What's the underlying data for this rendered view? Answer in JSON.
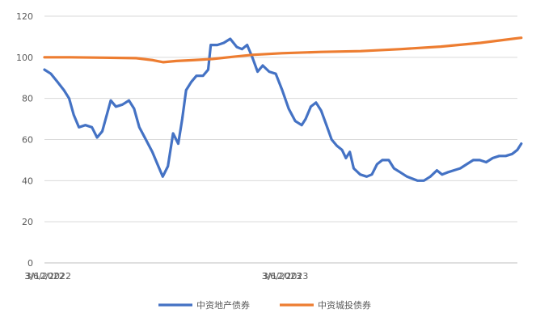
{
  "chart_data": {
    "type": "line",
    "title": "",
    "xlabel": "",
    "ylabel": "",
    "ylim": [
      0,
      120
    ],
    "yticks": [
      0,
      20,
      40,
      60,
      80,
      100,
      120
    ],
    "xlim": [
      "2022-03-06",
      "2024-03-03"
    ],
    "xticks": [
      "3/6/2022",
      "3/12/2022",
      "3/6/2023",
      "3/12/2023"
    ],
    "grid": true,
    "legend": "bottom",
    "series": [
      {
        "name": "中资地产债券",
        "color": "#4472C4",
        "points": [
          [
            "2022-03-06",
            94
          ],
          [
            "2022-03-16",
            92
          ],
          [
            "2022-03-26",
            88
          ],
          [
            "2022-04-05",
            84
          ],
          [
            "2022-04-13",
            80
          ],
          [
            "2022-04-20",
            72
          ],
          [
            "2022-04-28",
            66
          ],
          [
            "2022-05-08",
            67
          ],
          [
            "2022-05-18",
            66
          ],
          [
            "2022-05-26",
            61
          ],
          [
            "2022-06-03",
            64
          ],
          [
            "2022-06-10",
            72
          ],
          [
            "2022-06-16",
            79
          ],
          [
            "2022-06-24",
            76
          ],
          [
            "2022-07-04",
            77
          ],
          [
            "2022-07-14",
            79
          ],
          [
            "2022-07-22",
            75
          ],
          [
            "2022-07-30",
            66
          ],
          [
            "2022-08-09",
            60
          ],
          [
            "2022-08-19",
            54
          ],
          [
            "2022-08-27",
            48
          ],
          [
            "2022-09-04",
            42
          ],
          [
            "2022-09-12",
            47
          ],
          [
            "2022-09-20",
            63
          ],
          [
            "2022-09-28",
            58
          ],
          [
            "2022-10-04",
            70
          ],
          [
            "2022-10-10",
            84
          ],
          [
            "2022-10-18",
            88
          ],
          [
            "2022-10-26",
            91
          ],
          [
            "2022-11-05",
            91
          ],
          [
            "2022-11-13",
            94
          ],
          [
            "2022-11-17",
            106
          ],
          [
            "2022-11-27",
            106
          ],
          [
            "2022-12-07",
            107
          ],
          [
            "2022-12-17",
            109
          ],
          [
            "2022-12-27",
            105
          ],
          [
            "2023-01-04",
            104
          ],
          [
            "2023-01-12",
            106
          ],
          [
            "2023-01-20",
            100
          ],
          [
            "2023-01-28",
            93
          ],
          [
            "2023-02-05",
            96
          ],
          [
            "2023-02-15",
            93
          ],
          [
            "2023-02-25",
            92
          ],
          [
            "2023-03-07",
            84
          ],
          [
            "2023-03-17",
            75
          ],
          [
            "2023-03-27",
            69
          ],
          [
            "2023-04-06",
            67
          ],
          [
            "2023-04-12",
            70
          ],
          [
            "2023-04-20",
            76
          ],
          [
            "2023-04-28",
            78
          ],
          [
            "2023-05-06",
            74
          ],
          [
            "2023-05-14",
            67
          ],
          [
            "2023-05-22",
            60
          ],
          [
            "2023-05-30",
            57
          ],
          [
            "2023-06-07",
            55
          ],
          [
            "2023-06-13",
            51
          ],
          [
            "2023-06-19",
            54
          ],
          [
            "2023-06-25",
            46
          ],
          [
            "2023-07-05",
            43
          ],
          [
            "2023-07-15",
            42
          ],
          [
            "2023-07-23",
            43
          ],
          [
            "2023-07-31",
            48
          ],
          [
            "2023-08-08",
            50
          ],
          [
            "2023-08-18",
            50
          ],
          [
            "2023-08-26",
            46
          ],
          [
            "2023-09-05",
            44
          ],
          [
            "2023-09-15",
            42
          ],
          [
            "2023-09-23",
            41
          ],
          [
            "2023-10-01",
            40
          ],
          [
            "2023-10-11",
            40
          ],
          [
            "2023-10-21",
            42
          ],
          [
            "2023-10-31",
            45
          ],
          [
            "2023-11-08",
            43
          ],
          [
            "2023-11-16",
            44
          ],
          [
            "2023-11-26",
            45
          ],
          [
            "2023-12-06",
            46
          ],
          [
            "2023-12-16",
            48
          ],
          [
            "2023-12-26",
            50
          ],
          [
            "2024-01-05",
            50
          ],
          [
            "2024-01-15",
            49
          ],
          [
            "2024-01-25",
            51
          ],
          [
            "2024-02-04",
            52
          ],
          [
            "2024-02-14",
            52
          ],
          [
            "2024-02-24",
            53
          ],
          [
            "2024-03-03",
            55
          ],
          [
            "2024-03-09",
            58
          ]
        ]
      },
      {
        "name": "中资城投债券",
        "color": "#ED7D31",
        "points": [
          [
            "2022-03-06",
            100
          ],
          [
            "2022-04-15",
            100
          ],
          [
            "2022-06-05",
            99.8
          ],
          [
            "2022-07-25",
            99.6
          ],
          [
            "2022-08-20",
            98.6
          ],
          [
            "2022-09-05",
            97.6
          ],
          [
            "2022-09-25",
            98.2
          ],
          [
            "2022-10-20",
            98.6
          ],
          [
            "2022-11-20",
            99.2
          ],
          [
            "2022-12-20",
            100.2
          ],
          [
            "2023-01-20",
            101.2
          ],
          [
            "2023-03-06",
            102
          ],
          [
            "2023-05-06",
            102.6
          ],
          [
            "2023-07-06",
            103
          ],
          [
            "2023-09-06",
            104
          ],
          [
            "2023-11-06",
            105.2
          ],
          [
            "2024-01-06",
            107
          ],
          [
            "2024-03-09",
            109.5
          ]
        ]
      }
    ]
  }
}
